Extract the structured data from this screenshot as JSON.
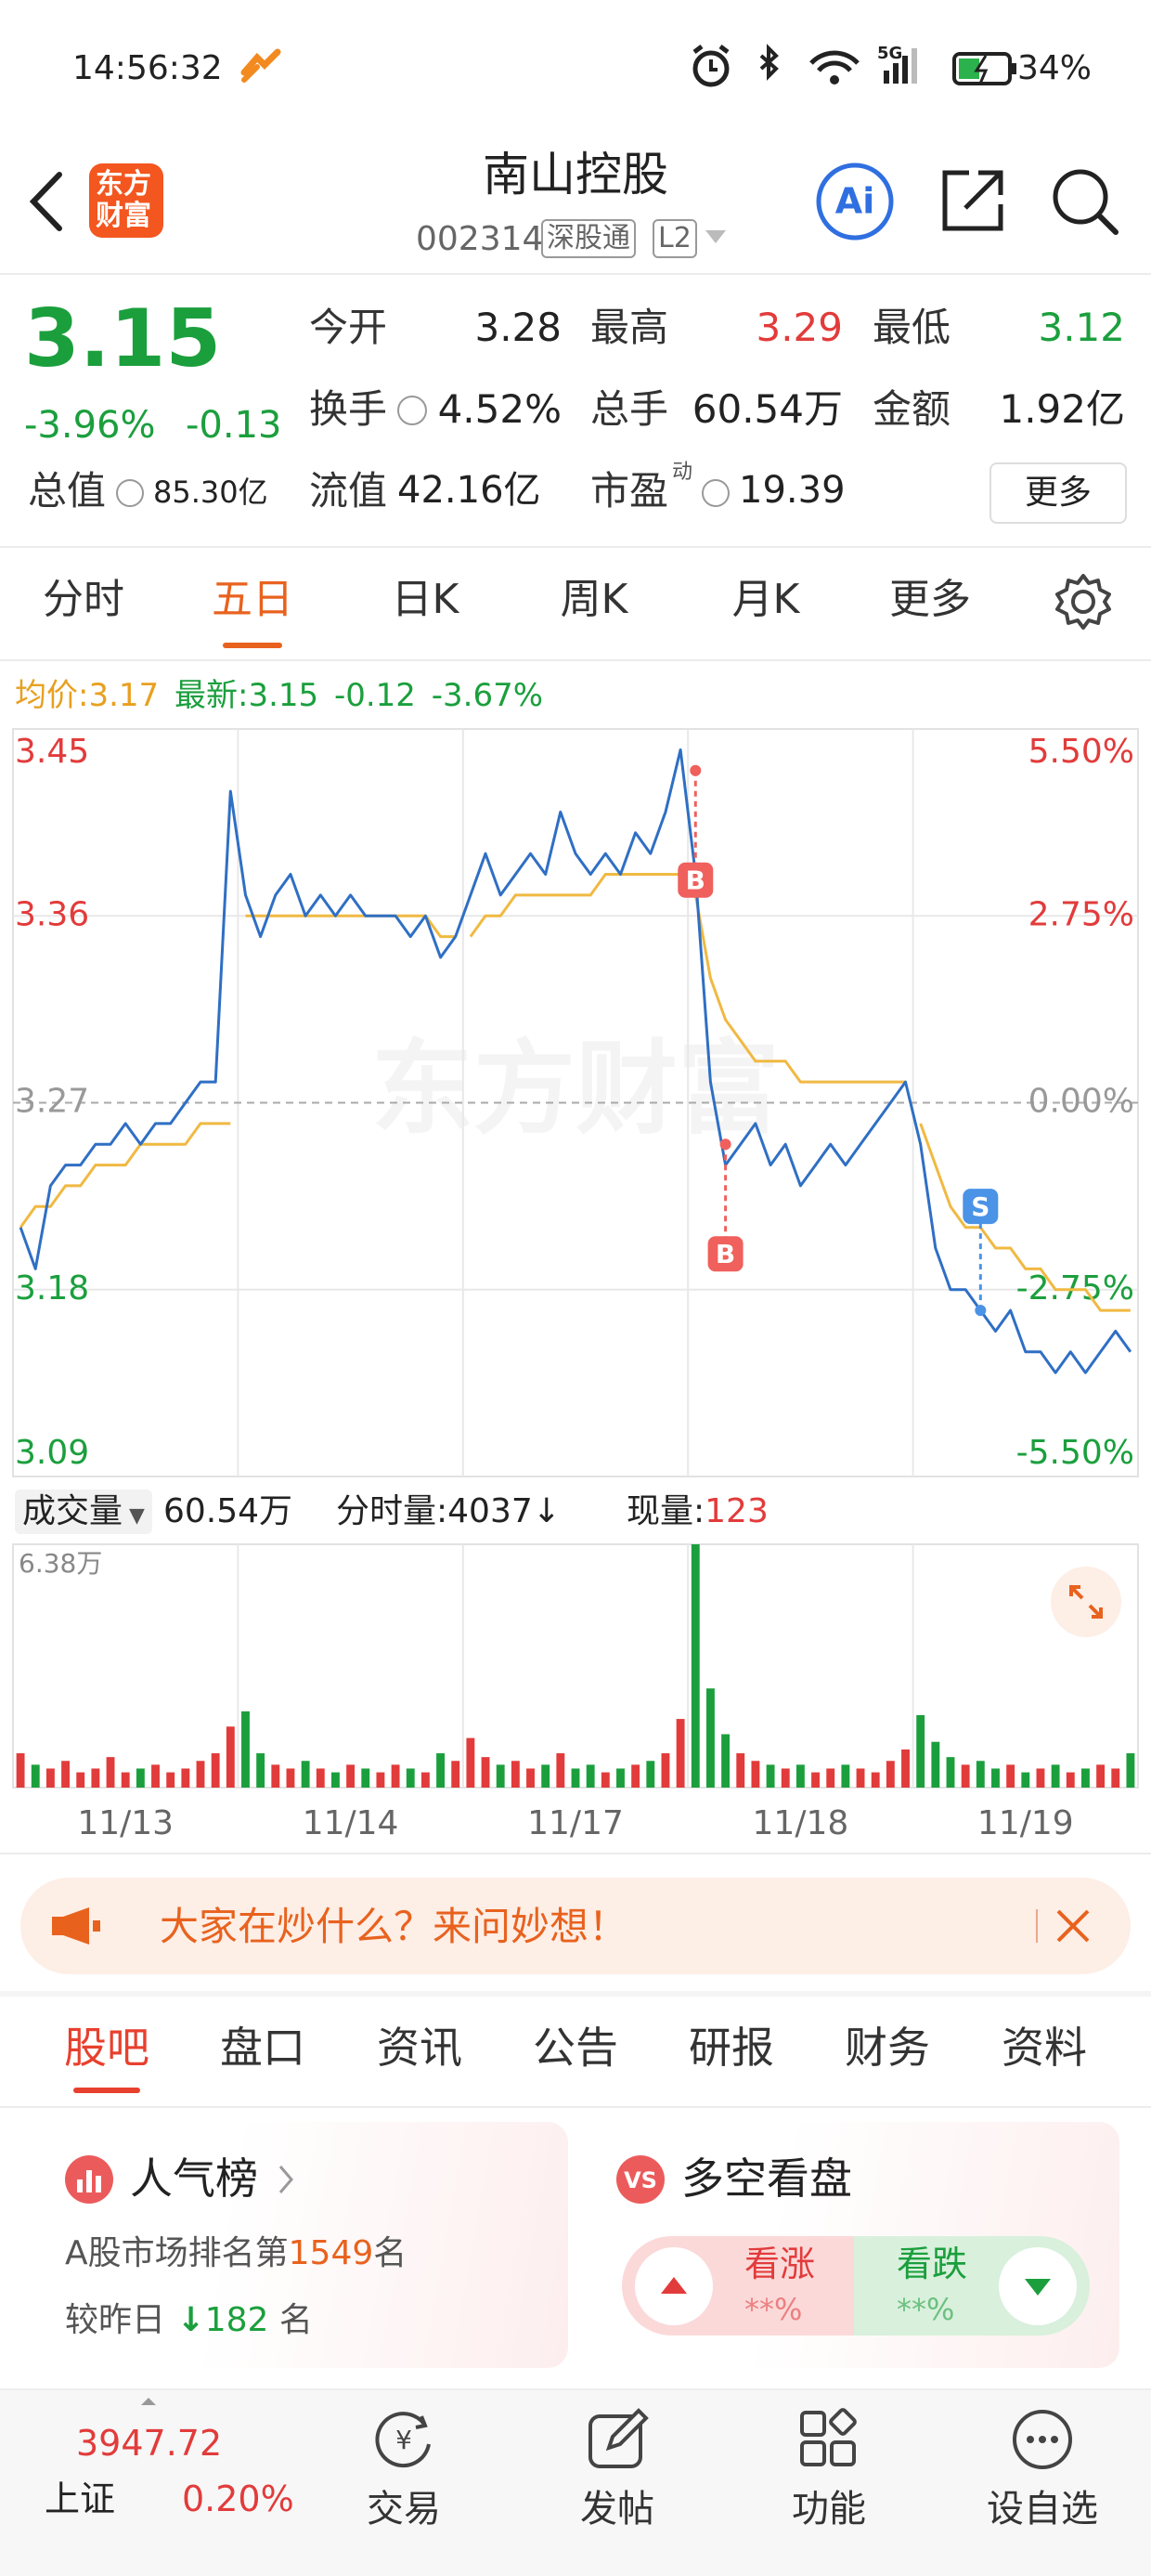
{
  "status_bar": {
    "time": "14:56:32",
    "battery": "34%"
  },
  "header": {
    "logo_lines": [
      "东方",
      "财富"
    ],
    "title": "南山控股",
    "code": "002314",
    "badges": [
      "深股通",
      "L2"
    ],
    "ai": "Ai"
  },
  "quote": {
    "price": "3.15",
    "change_pct": "-3.96%",
    "change": "-0.13",
    "stats": [
      {
        "label": "今开",
        "value": "3.28"
      },
      {
        "label": "最高",
        "value": "3.29"
      },
      {
        "label": "最低",
        "value": "3.12"
      },
      {
        "label": "换手",
        "value": "4.52%"
      },
      {
        "label": "总手",
        "value": "60.54万"
      },
      {
        "label": "金额",
        "value": "1.92亿"
      },
      {
        "label": "总值",
        "value": "85.30亿"
      },
      {
        "label": "流值",
        "value": "42.16亿"
      },
      {
        "label": "市盈",
        "sup": "动",
        "value": "19.39"
      }
    ],
    "more": "更多"
  },
  "tabs": {
    "items": [
      "分时",
      "五日",
      "日K",
      "周K",
      "月K",
      "更多"
    ],
    "selected": "五日"
  },
  "chart_info": {
    "avg_label": "均价:",
    "avg": "3.17",
    "latest_label": "最新:",
    "latest": "3.15",
    "change": "-0.12",
    "change_pct": "-3.67%"
  },
  "chart_data": {
    "type": "line",
    "watermark": "东方财富",
    "x_labels": [
      "11/13",
      "11/14",
      "11/17",
      "11/18",
      "11/19"
    ],
    "ylim": [
      3.09,
      3.45
    ],
    "yticks": [
      3.09,
      3.18,
      3.27,
      3.36,
      3.45
    ],
    "y2lim": [
      -5.5,
      5.5
    ],
    "y2ticks": [
      {
        "value": -5.5,
        "label": "-5.50%"
      },
      {
        "value": -2.75,
        "label": "-2.75%"
      },
      {
        "value": 0,
        "label": "0.00%"
      },
      {
        "value": 2.75,
        "label": "2.75%"
      },
      {
        "value": 5.5,
        "label": "5.50%"
      }
    ],
    "series": [
      {
        "color": "#2f6fc4",
        "values": [
          3.21,
          3.19,
          3.23,
          3.24,
          3.24,
          3.25,
          3.25,
          3.26,
          3.25,
          3.26,
          3.26,
          3.27,
          3.28,
          3.28,
          3.42,
          3.37,
          3.35,
          3.37,
          3.38,
          3.36,
          3.37,
          3.36,
          3.37,
          3.36,
          3.36,
          3.36,
          3.35,
          3.36,
          3.34,
          3.35,
          3.37,
          3.39,
          3.37,
          3.38,
          3.39,
          3.38,
          3.41,
          3.39,
          3.38,
          3.39,
          3.38,
          3.4,
          3.39,
          3.41,
          3.44,
          3.38,
          3.28,
          3.24,
          3.25,
          3.26,
          3.24,
          3.25,
          3.23,
          3.24,
          3.25,
          3.24,
          3.25,
          3.26,
          3.27,
          3.28,
          3.25,
          3.2,
          3.18,
          3.18,
          3.17,
          3.16,
          3.17,
          3.15,
          3.15,
          3.14,
          3.15,
          3.14,
          3.15,
          3.16,
          3.15
        ]
      },
      {
        "color": "#f0b942",
        "values": [
          3.21,
          3.22,
          3.22,
          3.23,
          3.23,
          3.24,
          3.24,
          3.24,
          3.25,
          3.25,
          3.25,
          3.25,
          3.26,
          3.26,
          3.26,
          3.36,
          3.36,
          3.36,
          3.36,
          3.36,
          3.36,
          3.36,
          3.36,
          3.36,
          3.36,
          3.36,
          3.36,
          3.36,
          3.35,
          3.35,
          3.35,
          3.36,
          3.36,
          3.37,
          3.37,
          3.37,
          3.37,
          3.37,
          3.37,
          3.38,
          3.38,
          3.38,
          3.38,
          3.38,
          3.38,
          3.37,
          3.33,
          3.31,
          3.3,
          3.29,
          3.29,
          3.29,
          3.28,
          3.28,
          3.28,
          3.28,
          3.28,
          3.28,
          3.28,
          3.28,
          3.26,
          3.24,
          3.22,
          3.21,
          3.21,
          3.2,
          3.2,
          3.19,
          3.19,
          3.18,
          3.18,
          3.18,
          3.17,
          3.17,
          3.17
        ]
      }
    ],
    "markers": [
      {
        "label": "B",
        "index": 45,
        "value": 3.43,
        "color": "#f0605c"
      },
      {
        "label": "B",
        "index": 47,
        "value": 3.25,
        "color": "#f0605c"
      },
      {
        "label": "S",
        "index": 64,
        "value": 3.17,
        "color": "#4a93e6"
      }
    ],
    "volume": {
      "ylim": [
        0,
        6.38
      ],
      "yticks": [
        {
          "value": 6.38,
          "label": "6.38万"
        }
      ],
      "values": [
        0.9,
        0.6,
        0.5,
        0.7,
        0.4,
        0.5,
        0.8,
        0.4,
        0.5,
        0.6,
        0.4,
        0.5,
        0.7,
        0.9,
        1.6,
        2.0,
        0.9,
        0.6,
        0.5,
        0.7,
        0.5,
        0.4,
        0.6,
        0.5,
        0.4,
        0.6,
        0.5,
        0.4,
        0.9,
        0.7,
        1.3,
        0.8,
        0.6,
        0.7,
        0.5,
        0.6,
        0.9,
        0.5,
        0.6,
        0.4,
        0.5,
        0.6,
        0.7,
        0.9,
        1.8,
        6.38,
        2.6,
        1.4,
        0.9,
        0.7,
        0.6,
        0.5,
        0.6,
        0.4,
        0.5,
        0.6,
        0.5,
        0.4,
        0.7,
        1.0,
        1.9,
        1.2,
        0.8,
        0.6,
        0.7,
        0.5,
        0.6,
        0.4,
        0.5,
        0.6,
        0.4,
        0.5,
        0.6,
        0.5,
        0.9
      ]
    }
  },
  "volume_info": {
    "selector": "成交量",
    "total": "60.54万",
    "tick_label": "分时量:",
    "tick_value": "4037",
    "tick_arrow": "↓",
    "now_label": "现量:",
    "now_value": "123"
  },
  "banner": {
    "text": "大家在炒什么？来问妙想！"
  },
  "sub_tabs": {
    "items": [
      "股吧",
      "盘口",
      "资讯",
      "公告",
      "研报",
      "财务",
      "资料"
    ],
    "selected": "股吧"
  },
  "cards": {
    "popularity": {
      "title": "人气榜",
      "rank_prefix": "A股市场排名第",
      "rank": "1549",
      "rank_suffix": "名",
      "change_prefix": "较昨日",
      "change": "182",
      "change_suffix": "名"
    },
    "sentiment": {
      "title": "多空看盘",
      "up_label": "看涨",
      "up_value": "**%",
      "down_label": "看跌",
      "down_value": "**%"
    }
  },
  "bottom_nav": {
    "index_value": "3947.72",
    "index_name": "上证",
    "index_change": "0.20%",
    "items": [
      "交易",
      "发帖",
      "功能",
      "设自选"
    ]
  }
}
